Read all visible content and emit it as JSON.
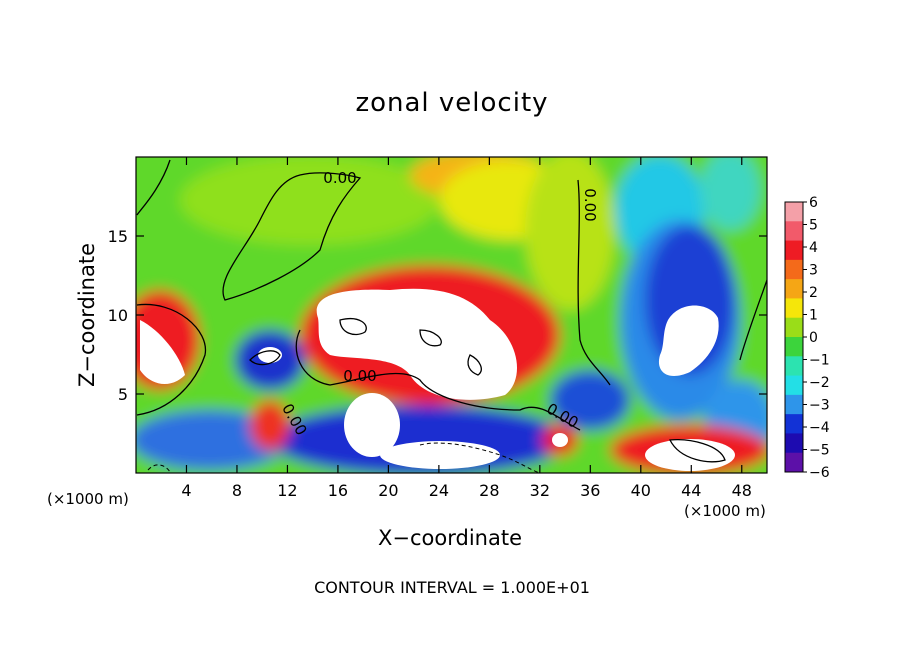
{
  "chart_data": {
    "type": "heatmap",
    "title": "zonal velocity",
    "xlabel": "X−coordinate",
    "ylabel": "Z−coordinate",
    "x_unit_left": "(×1000 m)",
    "x_unit_right": "(×1000 m)",
    "xlim": [
      0,
      50
    ],
    "ylim": [
      0,
      20
    ],
    "x_ticks": [
      4,
      8,
      12,
      16,
      20,
      24,
      28,
      32,
      36,
      40,
      44,
      48
    ],
    "y_ticks": [
      5,
      10,
      15
    ],
    "colorbar": {
      "ticks": [
        "6",
        "5",
        "4",
        "3",
        "2",
        "1",
        "0",
        "−1",
        "−2",
        "−3",
        "−4",
        "−5",
        "−6"
      ],
      "min": -6,
      "max": 6,
      "colors": [
        "#f4a0a8",
        "#f25a6a",
        "#ee1c24",
        "#f46a1a",
        "#f5a615",
        "#f5e60a",
        "#9add18",
        "#3cd43c",
        "#2ce3b0",
        "#23dfe6",
        "#2e95ea",
        "#1232d6",
        "#1d0bb0",
        "#5c10a8"
      ]
    },
    "contour_labels": [
      "0.00",
      "0.00",
      "0.00",
      "0.00",
      "0.00"
    ],
    "footer": "CONTOUR INTERVAL = 1.000E+01"
  }
}
